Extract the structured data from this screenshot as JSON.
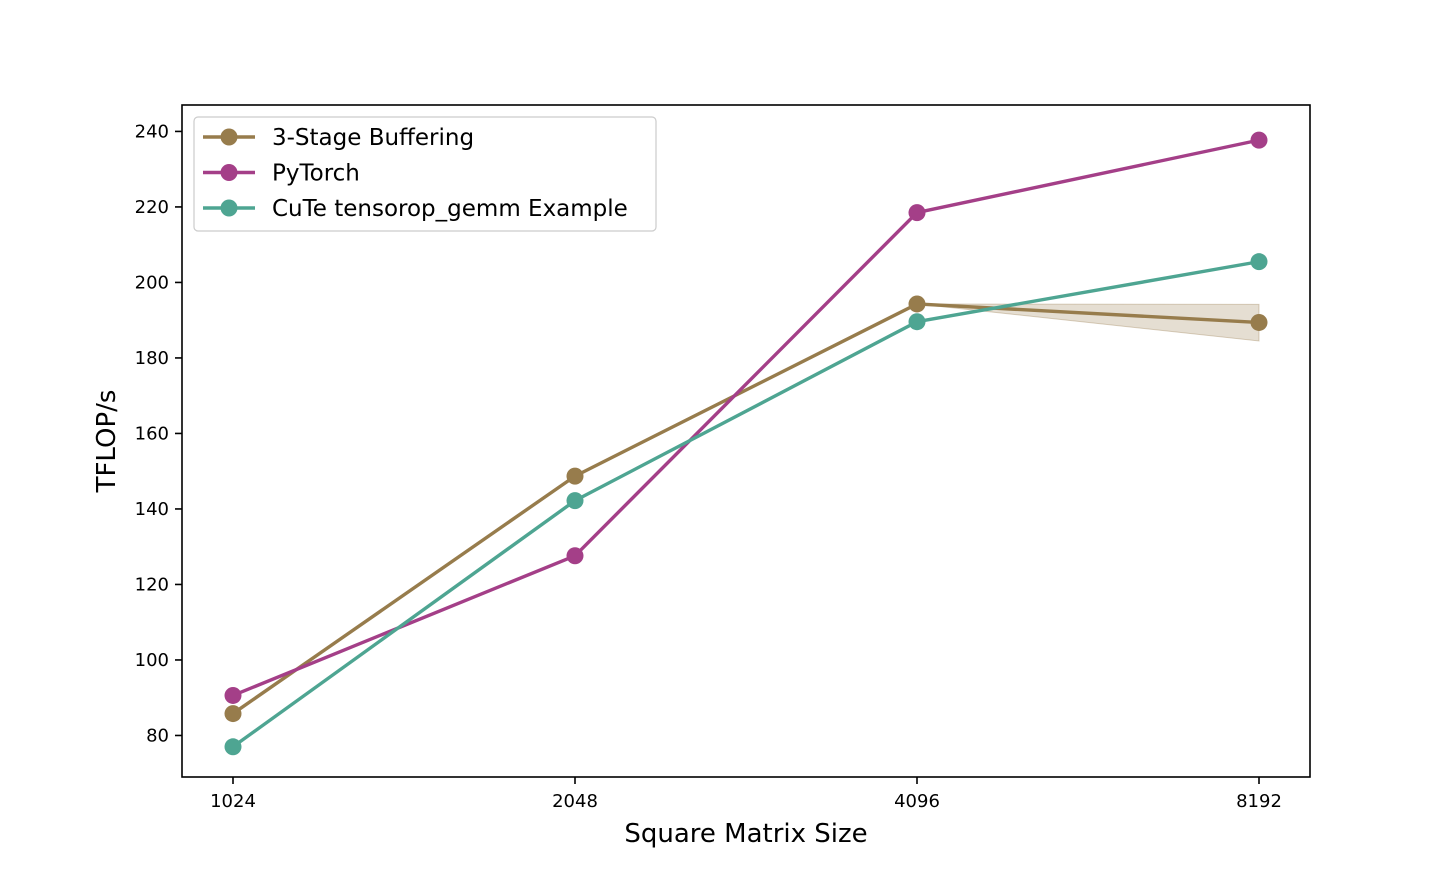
{
  "chart_data": {
    "type": "line",
    "x_scale": "log2",
    "x": [
      1024,
      2048,
      4096,
      8192
    ],
    "xticks": [
      "1024",
      "2048",
      "4096",
      "8192"
    ],
    "yticks": [
      80,
      100,
      120,
      140,
      160,
      180,
      200,
      220,
      240
    ],
    "ylim": [
      69,
      247
    ],
    "xlabel": "Square Matrix Size",
    "ylabel": "TFLOP/s",
    "grid": false,
    "legend_position": "top-left",
    "series": [
      {
        "name": "3-Stage Buffering",
        "color": "#977c4c",
        "values": [
          85.8,
          148.7,
          194.3,
          189.4
        ],
        "band_lower": [
          85.8,
          148.7,
          194.3,
          184.5
        ],
        "band_upper": [
          85.8,
          148.7,
          194.3,
          194.2
        ]
      },
      {
        "name": "PyTorch",
        "color": "#a43f88",
        "values": [
          90.6,
          127.6,
          218.5,
          237.7
        ]
      },
      {
        "name": "CuTe tensorop_gemm Example",
        "color": "#4ea592",
        "values": [
          77.0,
          142.2,
          189.6,
          205.5
        ]
      }
    ]
  }
}
